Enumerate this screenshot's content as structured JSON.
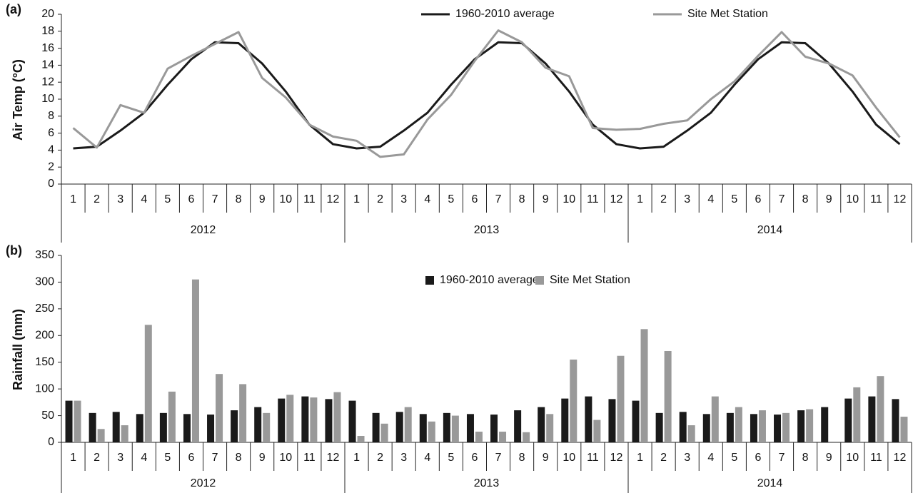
{
  "chart_data": [
    {
      "type": "line",
      "label": "(a)",
      "y_label": "Air Temp (°C)",
      "categories": [
        "1",
        "2",
        "3",
        "4",
        "5",
        "6",
        "7",
        "8",
        "9",
        "10",
        "11",
        "12",
        "1",
        "2",
        "3",
        "4",
        "5",
        "6",
        "7",
        "8",
        "9",
        "10",
        "11",
        "12",
        "1",
        "2",
        "3",
        "4",
        "5",
        "6",
        "7",
        "8",
        "9",
        "10",
        "11",
        "12"
      ],
      "groups": [
        "2012",
        "2013",
        "2014"
      ],
      "series": [
        {
          "name": "1960-2010 average",
          "color": "#1a1a1a",
          "values": [
            4.2,
            4.4,
            6.3,
            8.4,
            11.7,
            14.7,
            16.7,
            16.6,
            14.2,
            10.9,
            7.0,
            4.7,
            4.2,
            4.4,
            6.3,
            8.4,
            11.7,
            14.7,
            16.7,
            16.6,
            14.2,
            10.9,
            7.0,
            4.7,
            4.2,
            4.4,
            6.3,
            8.4,
            11.7,
            14.7,
            16.7,
            16.6,
            14.2,
            10.9,
            7.0,
            4.7
          ]
        },
        {
          "name": "Site Met Station",
          "color": "#999999",
          "values": [
            6.6,
            4.3,
            9.3,
            8.4,
            13.6,
            15.1,
            16.5,
            17.9,
            12.5,
            10.2,
            7.0,
            5.6,
            5.1,
            3.2,
            3.5,
            7.6,
            10.5,
            14.5,
            18.1,
            16.7,
            13.7,
            12.7,
            6.6,
            6.4,
            6.5,
            7.1,
            7.5,
            10.0,
            12.1,
            15.1,
            17.9,
            15.0,
            14.2,
            12.8,
            9.0,
            5.5
          ]
        }
      ],
      "ylim": [
        0,
        20
      ],
      "yticks": [
        0,
        2,
        4,
        6,
        8,
        10,
        12,
        14,
        16,
        18,
        20
      ]
    },
    {
      "type": "bar",
      "label": "(b)",
      "y_label": "Rainfall (mm)",
      "categories": [
        "1",
        "2",
        "3",
        "4",
        "5",
        "6",
        "7",
        "8",
        "9",
        "10",
        "11",
        "12",
        "1",
        "2",
        "3",
        "4",
        "5",
        "6",
        "7",
        "8",
        "9",
        "10",
        "11",
        "12",
        "1",
        "2",
        "3",
        "4",
        "5",
        "6",
        "7",
        "8",
        "9",
        "10",
        "11",
        "12"
      ],
      "groups": [
        "2012",
        "2013",
        "2014"
      ],
      "series": [
        {
          "name": "1960-2010 average",
          "color": "#1a1a1a",
          "values": [
            78,
            55,
            57,
            53,
            55,
            53,
            52,
            60,
            66,
            82,
            86,
            81,
            78,
            55,
            57,
            53,
            55,
            53,
            52,
            60,
            66,
            82,
            86,
            81,
            78,
            55,
            57,
            53,
            55,
            53,
            52,
            60,
            66,
            82,
            86,
            81
          ]
        },
        {
          "name": "Site Met Station",
          "color": "#999999",
          "values": [
            78,
            25,
            32,
            220,
            95,
            305,
            128,
            109,
            55,
            89,
            84,
            94,
            12,
            35,
            66,
            39,
            50,
            20,
            20,
            19,
            53,
            155,
            42,
            162,
            212,
            171,
            32,
            86,
            66,
            60,
            55,
            62,
            null,
            103,
            124,
            48
          ]
        }
      ],
      "ylim": [
        0,
        350
      ],
      "yticks": [
        0,
        50,
        100,
        150,
        200,
        250,
        300,
        350
      ]
    }
  ]
}
